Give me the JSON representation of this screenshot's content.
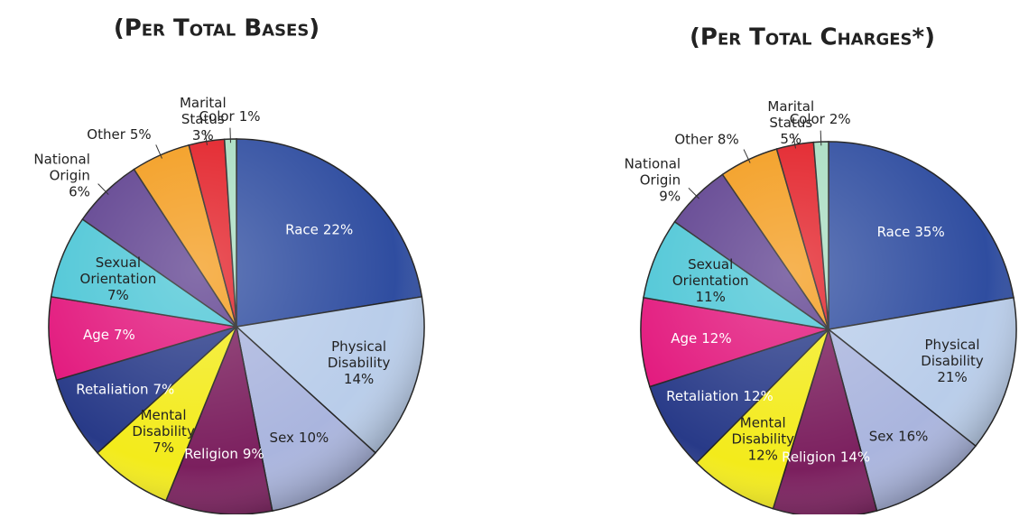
{
  "chart_data": [
    {
      "type": "pie",
      "title": "(Per Total Bases)",
      "categories": [
        "Race",
        "Physical Disability",
        "Sex",
        "Religion",
        "Mental Disability",
        "Retaliation",
        "Age",
        "Sexual Orientation",
        "National Origin",
        "Other",
        "Marital Status",
        "Color"
      ],
      "values": [
        22,
        14,
        10,
        9,
        7,
        7,
        7,
        7,
        6,
        5,
        3,
        1
      ],
      "value_labels": [
        "22%",
        "14%",
        "10%",
        "9%",
        "7%",
        "7%",
        "7%",
        "7%",
        "6%",
        "5%",
        "3%",
        "1%"
      ],
      "colors": [
        "#2f4da0",
        "#b9cdea",
        "#aab5de",
        "#7b1f5e",
        "#f3eb1b",
        "#283a88",
        "#e2167c",
        "#4cc6d6",
        "#5d3f8e",
        "#f39b1b",
        "#e21d25",
        "#a9ddc2"
      ]
    },
    {
      "type": "pie",
      "title": "(Per Total Charges*)",
      "categories": [
        "Race",
        "Physical Disability",
        "Sex",
        "Religion",
        "Mental Disability",
        "Retaliation",
        "Age",
        "Sexual Orientation",
        "National Origin",
        "Other",
        "Marital Status",
        "Color"
      ],
      "values": [
        35,
        21,
        16,
        14,
        12,
        12,
        12,
        11,
        9,
        8,
        5,
        2
      ],
      "value_labels": [
        "35%",
        "21%",
        "16%",
        "14%",
        "12%",
        "12%",
        "12%",
        "11%",
        "9%",
        "8%",
        "5%",
        "2%"
      ],
      "colors": [
        "#2f4da0",
        "#b9cdea",
        "#aab5de",
        "#7b1f5e",
        "#f3eb1b",
        "#283a88",
        "#e2167c",
        "#4cc6d6",
        "#5d3f8e",
        "#f39b1b",
        "#e21d25",
        "#a9ddc2"
      ]
    }
  ]
}
